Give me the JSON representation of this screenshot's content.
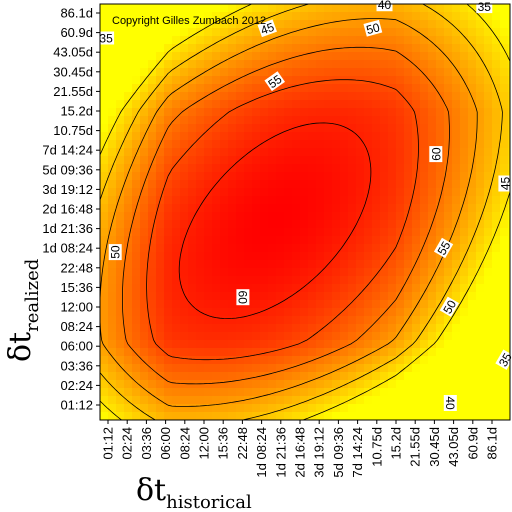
{
  "chart_data": {
    "type": "heatmap",
    "subtype": "contour",
    "copyright": "Copyright Gilles Zumbach 2012",
    "xlabel": {
      "symbol": "δt",
      "subscript": "historical"
    },
    "ylabel": {
      "symbol": "δt",
      "subscript": "realized"
    },
    "ticks": [
      "01:12",
      "02:24",
      "03:36",
      "06:00",
      "08:24",
      "12:00",
      "15:36",
      "22:48",
      "1d 08:24",
      "1d 21:36",
      "2d 16:48",
      "3d 19:12",
      "5d 09:36",
      "7d 14:24",
      "10.75d",
      "15.2d",
      "21.55d",
      "30.45d",
      "43.05d",
      "60.9d",
      "86.1d"
    ],
    "colorscale": [
      "#ff0000",
      "#ffff00"
    ],
    "contour_levels": [
      {
        "level": 35,
        "label": "35"
      },
      {
        "level": 40,
        "label": "40"
      },
      {
        "level": 45,
        "label": "45"
      },
      {
        "level": 50,
        "label": "50"
      },
      {
        "level": 55,
        "label": "55"
      },
      {
        "level": 60,
        "label": "60"
      }
    ],
    "contour_labels": [
      {
        "text": "40",
        "ix": 14.4,
        "iy": 20.4,
        "angle": 0
      },
      {
        "text": "35",
        "ix": 19.6,
        "iy": 20.3,
        "angle": 0
      },
      {
        "text": "45",
        "ix": 8.3,
        "iy": 19.2,
        "angle": -20
      },
      {
        "text": "50",
        "ix": 13.8,
        "iy": 19.2,
        "angle": -15
      },
      {
        "text": "35",
        "ix": -0.1,
        "iy": 18.7,
        "angle": 0
      },
      {
        "text": "55",
        "ix": 8.7,
        "iy": 16.5,
        "angle": -35
      },
      {
        "text": "60",
        "ix": 17.1,
        "iy": 12.8,
        "angle": -90
      },
      {
        "text": "45",
        "ix": 20.7,
        "iy": 11.3,
        "angle": -90
      },
      {
        "text": "50",
        "ix": 0.4,
        "iy": 7.8,
        "angle": -90
      },
      {
        "text": "55",
        "ix": 17.5,
        "iy": 8.0,
        "angle": -60
      },
      {
        "text": "60",
        "ix": 7.0,
        "iy": 5.5,
        "angle": 90
      },
      {
        "text": "50",
        "ix": 17.8,
        "iy": 5.0,
        "angle": -60
      },
      {
        "text": "35",
        "ix": 20.7,
        "iy": 2.3,
        "angle": -60
      },
      {
        "text": "40",
        "ix": 17.8,
        "iy": 0.1,
        "angle": 90
      }
    ]
  }
}
